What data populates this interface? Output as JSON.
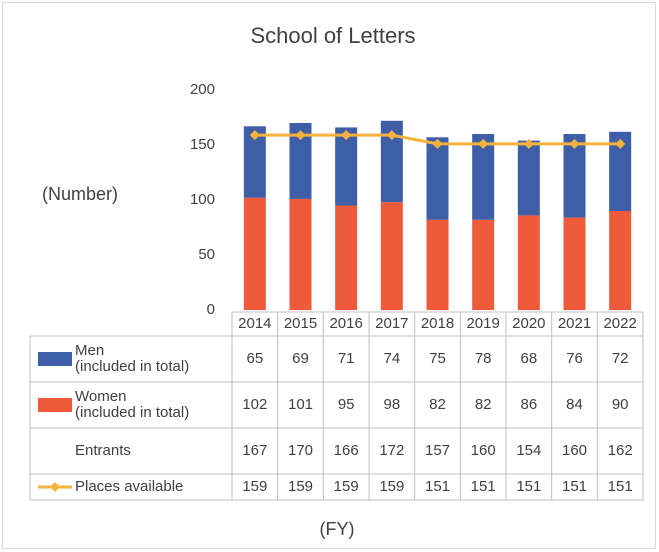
{
  "chart_data": {
    "type": "bar",
    "title": "School of Letters",
    "y_axis_label": "(Number)",
    "x_axis_label": "(FY)",
    "categories": [
      "2014",
      "2015",
      "2016",
      "2017",
      "2018",
      "2019",
      "2020",
      "2021",
      "2022"
    ],
    "series": [
      {
        "name": "Men\n(included in total)",
        "color": "#3f5ea8",
        "values": [
          65,
          69,
          71,
          74,
          75,
          78,
          68,
          76,
          72
        ]
      },
      {
        "name": "Women\n(included in total)",
        "color": "#ee5a3a",
        "values": [
          102,
          101,
          95,
          98,
          82,
          82,
          86,
          84,
          90
        ]
      },
      {
        "name": "Places available",
        "color": "#f6b23c",
        "type": "line",
        "values": [
          159,
          159,
          159,
          159,
          151,
          151,
          151,
          151,
          151
        ]
      }
    ],
    "totals": {
      "name": "Entrants",
      "values": [
        167,
        170,
        166,
        172,
        157,
        160,
        154,
        160,
        162
      ]
    },
    "ylim": [
      0,
      200
    ],
    "yticks": [
      0,
      50,
      100,
      150,
      200
    ],
    "grid": false
  }
}
